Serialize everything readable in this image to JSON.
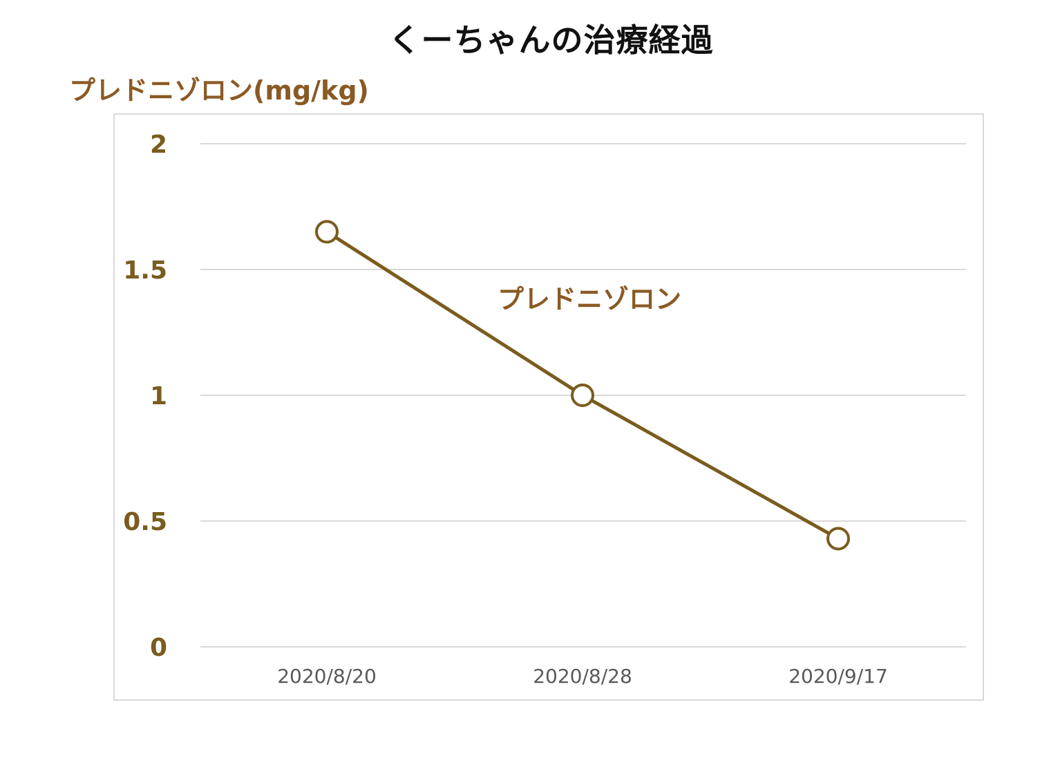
{
  "chart_data": {
    "type": "line",
    "title": "くーちゃんの治療経過",
    "ylabel": "プレドニゾロン(mg/kg)",
    "xlabel": "",
    "categories": [
      "2020/8/20",
      "2020/8/28",
      "2020/9/17"
    ],
    "series": [
      {
        "name": "プレドニゾロン",
        "values": [
          1.65,
          1.0,
          0.43
        ],
        "color": "#7a5c1e"
      }
    ],
    "ylim": [
      0,
      2
    ],
    "yticks": [
      "0",
      "0.5",
      "1",
      "1.5",
      "2"
    ],
    "grid": true,
    "legend": "inline-label"
  }
}
